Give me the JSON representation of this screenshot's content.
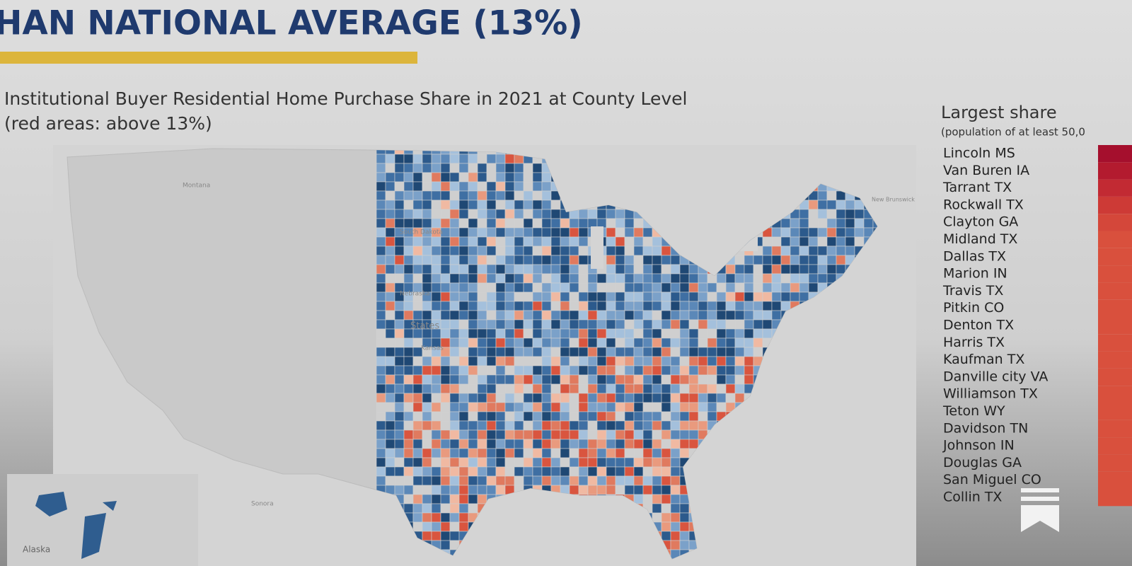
{
  "header": {
    "title": "HAN NATIONAL AVERAGE (13%)"
  },
  "map": {
    "title_line1": "Institutional Buyer Residential Home Purchase Share in 2021 at County Level",
    "title_line2": "(red areas: above 13%)",
    "place_labels": [
      "Montana",
      "South Dakota",
      "Nebraska",
      "States",
      "Kansas",
      "Alaska",
      "New Brunswick",
      "Sonora"
    ]
  },
  "legend": {
    "title": "Largest share",
    "subtitle": "(population of at least 50,0",
    "items": [
      "Lincoln MS",
      "Van Buren IA",
      "Tarrant TX",
      "Rockwall TX",
      "Clayton GA",
      "Midland TX",
      "Dallas TX",
      "Marion IN",
      "Travis TX",
      "Pitkin CO",
      "Denton TX",
      "Harris TX",
      "Kaufman TX",
      "Danville city VA",
      "Williamson TX",
      "Teton WY",
      "Davidson TN",
      "Johnson IN",
      "Douglas GA",
      "San Miguel CO",
      "Collin TX"
    ]
  }
}
